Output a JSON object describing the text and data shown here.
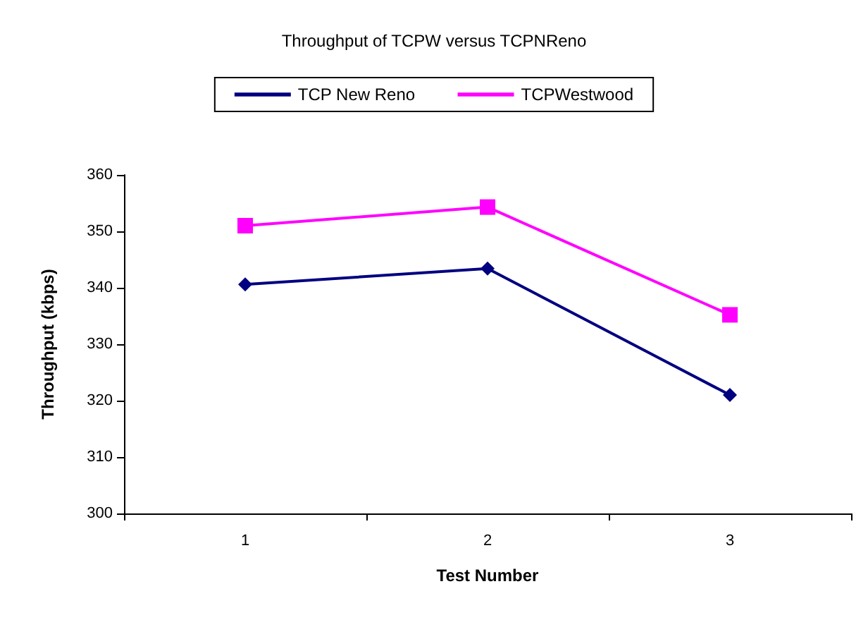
{
  "chart_data": {
    "type": "line",
    "title": "Throughput of TCPW versus TCPNReno",
    "xlabel": "Test Number",
    "ylabel": "Throughput (kbps)",
    "categories": [
      "1",
      "2",
      "3"
    ],
    "series": [
      {
        "name": "TCP New Reno",
        "color": "#000080",
        "marker": "diamond",
        "values": [
          340.6,
          343.4,
          321.0
        ]
      },
      {
        "name": "TCPWestwood",
        "color": "#ff00ff",
        "marker": "square",
        "values": [
          351.0,
          354.3,
          335.2
        ]
      }
    ],
    "ylim": [
      300,
      360
    ],
    "yticks": [
      300,
      310,
      320,
      330,
      340,
      350,
      360
    ],
    "grid": false,
    "legend": "top",
    "line_style": "solid"
  }
}
